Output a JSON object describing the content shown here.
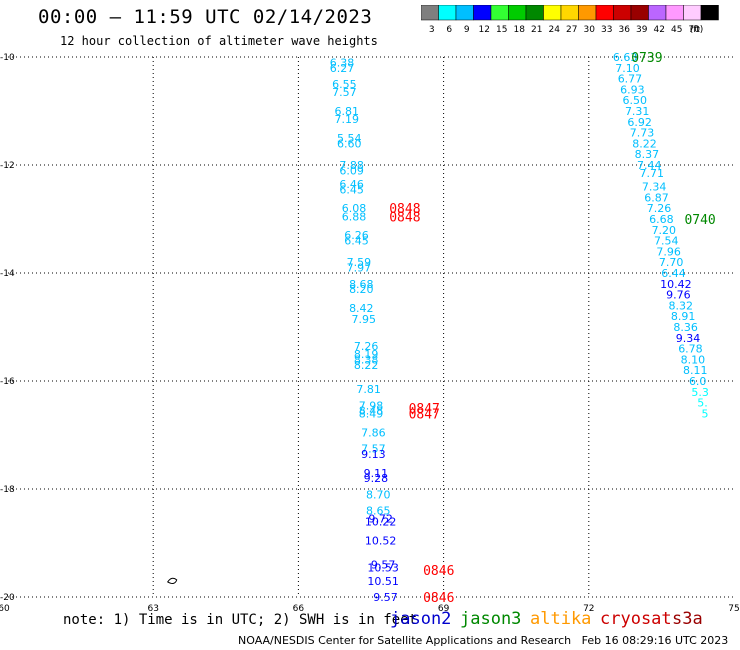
{
  "header": {
    "title": "00:00 – 11:59 UTC 02/14/2023",
    "subtitle": "12 hour collection of altimeter wave heights"
  },
  "legend": {
    "unit_label": "(ft)",
    "bins": [
      {
        "label": "3",
        "color": "#7f7f7f"
      },
      {
        "label": "6",
        "color": "#00ffff"
      },
      {
        "label": "9",
        "color": "#00bfff"
      },
      {
        "label": "12",
        "color": "#0000ff"
      },
      {
        "label": "15",
        "color": "#33ff33"
      },
      {
        "label": "18",
        "color": "#00cc00"
      },
      {
        "label": "21",
        "color": "#008800"
      },
      {
        "label": "24",
        "color": "#ffff00"
      },
      {
        "label": "27",
        "color": "#ffd700"
      },
      {
        "label": "30",
        "color": "#ff9900"
      },
      {
        "label": "33",
        "color": "#ff0000"
      },
      {
        "label": "36",
        "color": "#cc0000"
      },
      {
        "label": "39",
        "color": "#990000"
      },
      {
        "label": "42",
        "color": "#bb66ff"
      },
      {
        "label": "45",
        "color": "#ff99ff"
      },
      {
        "label": "70",
        "color": "#ffccff"
      },
      {
        "label": "",
        "color": "#000000"
      }
    ]
  },
  "footer": {
    "note": "note: 1) Time is in UTC; 2) SWH is in feet",
    "satellites": [
      {
        "name": "jason2",
        "color": "#0000cc"
      },
      {
        "name": "jason3",
        "color": "#008800"
      },
      {
        "name": "altika",
        "color": "#ff9900"
      },
      {
        "name": "cryosat",
        "color": "#cc0000"
      },
      {
        "name": "s3a",
        "color": "#990000"
      }
    ],
    "credit": "NOAA/NESDIS Center for Satellite Applications and Research",
    "timestamp": "Feb 16 08:29:16 UTC 2023"
  },
  "chart_data": {
    "type": "scatter",
    "title": "00:00 – 11:59 UTC 02/14/2023",
    "xlim": [
      60,
      75
    ],
    "ylim": [
      -20,
      -10
    ],
    "x_ticks": [
      "60",
      "63",
      "66",
      "69",
      "72",
      "75"
    ],
    "x_tick_values": [
      60,
      63,
      66,
      69,
      72,
      75
    ],
    "y_ticks": [
      "-10",
      "-12",
      "-14",
      "-16",
      "-18",
      "-20"
    ],
    "y_tick_values": [
      -10,
      -12,
      -14,
      -16,
      -18,
      -20
    ],
    "grid": true,
    "points": [
      {
        "x": 66.9,
        "y": -10.1,
        "label": "6.38",
        "color": "#00bfff"
      },
      {
        "x": 66.9,
        "y": -10.2,
        "label": "6.27",
        "color": "#00bfff"
      },
      {
        "x": 66.95,
        "y": -10.5,
        "label": "6.55",
        "color": "#00bfff"
      },
      {
        "x": 66.95,
        "y": -10.65,
        "label": "7.57",
        "color": "#00bfff"
      },
      {
        "x": 67.0,
        "y": -11.0,
        "label": "6.81",
        "color": "#00bfff"
      },
      {
        "x": 67.0,
        "y": -11.15,
        "label": "7.19",
        "color": "#00bfff"
      },
      {
        "x": 67.05,
        "y": -11.5,
        "label": "5.54",
        "color": "#00bfff"
      },
      {
        "x": 67.05,
        "y": -11.6,
        "label": "6.60",
        "color": "#00bfff"
      },
      {
        "x": 67.1,
        "y": -12.0,
        "label": "7.88",
        "color": "#00bfff"
      },
      {
        "x": 67.1,
        "y": -12.1,
        "label": "6.09",
        "color": "#00bfff"
      },
      {
        "x": 67.1,
        "y": -12.35,
        "label": "6.46",
        "color": "#00bfff"
      },
      {
        "x": 67.1,
        "y": -12.45,
        "label": "6.45",
        "color": "#00bfff"
      },
      {
        "x": 67.15,
        "y": -12.8,
        "label": "6.08",
        "color": "#00bfff"
      },
      {
        "x": 67.15,
        "y": -12.95,
        "label": "6.88",
        "color": "#00bfff"
      },
      {
        "x": 67.2,
        "y": -13.3,
        "label": "6.26",
        "color": "#00bfff"
      },
      {
        "x": 67.2,
        "y": -13.4,
        "label": "6.45",
        "color": "#00bfff"
      },
      {
        "x": 67.25,
        "y": -13.8,
        "label": "7.59",
        "color": "#00bfff"
      },
      {
        "x": 67.25,
        "y": -13.9,
        "label": "7.97",
        "color": "#00bfff"
      },
      {
        "x": 67.3,
        "y": -14.2,
        "label": "8.68",
        "color": "#00bfff"
      },
      {
        "x": 67.3,
        "y": -14.3,
        "label": "8.20",
        "color": "#00bfff"
      },
      {
        "x": 67.3,
        "y": -14.65,
        "label": "8.42",
        "color": "#00bfff"
      },
      {
        "x": 67.35,
        "y": -14.85,
        "label": "7.95",
        "color": "#00bfff"
      },
      {
        "x": 67.4,
        "y": -15.35,
        "label": "7.26",
        "color": "#00bfff"
      },
      {
        "x": 67.4,
        "y": -15.5,
        "label": "8.19",
        "color": "#00bfff"
      },
      {
        "x": 67.4,
        "y": -15.6,
        "label": "8.38",
        "color": "#00bfff"
      },
      {
        "x": 67.4,
        "y": -15.7,
        "label": "8.22",
        "color": "#00bfff"
      },
      {
        "x": 67.45,
        "y": -16.15,
        "label": "7.81",
        "color": "#00bfff"
      },
      {
        "x": 67.5,
        "y": -16.45,
        "label": "7.98",
        "color": "#00bfff"
      },
      {
        "x": 67.5,
        "y": -16.55,
        "label": "8.48",
        "color": "#00bfff"
      },
      {
        "x": 67.5,
        "y": -16.6,
        "label": "8.49",
        "color": "#00bfff"
      },
      {
        "x": 67.55,
        "y": -16.95,
        "label": "7.86",
        "color": "#00bfff"
      },
      {
        "x": 67.55,
        "y": -17.25,
        "label": "7.57",
        "color": "#00bfff"
      },
      {
        "x": 67.55,
        "y": -17.35,
        "label": "9.13",
        "color": "#0000ff"
      },
      {
        "x": 67.6,
        "y": -17.7,
        "label": "9.11",
        "color": "#0000ff"
      },
      {
        "x": 67.6,
        "y": -17.8,
        "label": "9.28",
        "color": "#0000ff"
      },
      {
        "x": 67.65,
        "y": -18.1,
        "label": "8.70",
        "color": "#00bfff"
      },
      {
        "x": 67.65,
        "y": -18.4,
        "label": "8.65",
        "color": "#00bfff"
      },
      {
        "x": 67.7,
        "y": -18.55,
        "label": "9.72",
        "color": "#0000ff"
      },
      {
        "x": 67.7,
        "y": -18.6,
        "label": "10.22",
        "color": "#0000ff"
      },
      {
        "x": 67.7,
        "y": -18.95,
        "label": "10.52",
        "color": "#0000ff"
      },
      {
        "x": 67.75,
        "y": -19.4,
        "label": "9.57",
        "color": "#0000ff"
      },
      {
        "x": 67.75,
        "y": -19.45,
        "label": "10.53",
        "color": "#0000ff"
      },
      {
        "x": 67.75,
        "y": -19.7,
        "label": "10.51",
        "color": "#0000ff"
      },
      {
        "x": 67.8,
        "y": -20.0,
        "label": "9.57",
        "color": "#0000ff"
      },
      {
        "x": 72.75,
        "y": -10.0,
        "label": "6.63",
        "color": "#00bfff"
      },
      {
        "x": 72.8,
        "y": -10.2,
        "label": "7.10",
        "color": "#00bfff"
      },
      {
        "x": 72.85,
        "y": -10.4,
        "label": "6.77",
        "color": "#00bfff"
      },
      {
        "x": 72.9,
        "y": -10.6,
        "label": "6.93",
        "color": "#00bfff"
      },
      {
        "x": 72.95,
        "y": -10.8,
        "label": "6.50",
        "color": "#00bfff"
      },
      {
        "x": 73.0,
        "y": -11.0,
        "label": "7.31",
        "color": "#00bfff"
      },
      {
        "x": 73.05,
        "y": -11.2,
        "label": "6.92",
        "color": "#00bfff"
      },
      {
        "x": 73.1,
        "y": -11.4,
        "label": "7.73",
        "color": "#00bfff"
      },
      {
        "x": 73.15,
        "y": -11.6,
        "label": "8.22",
        "color": "#00bfff"
      },
      {
        "x": 73.2,
        "y": -11.8,
        "label": "8.37",
        "color": "#00bfff"
      },
      {
        "x": 73.25,
        "y": -12.0,
        "label": "7.44",
        "color": "#00bfff"
      },
      {
        "x": 73.3,
        "y": -12.15,
        "label": "7.71",
        "color": "#00bfff"
      },
      {
        "x": 73.35,
        "y": -12.4,
        "label": "7.34",
        "color": "#00bfff"
      },
      {
        "x": 73.4,
        "y": -12.6,
        "label": "6.87",
        "color": "#00bfff"
      },
      {
        "x": 73.45,
        "y": -12.8,
        "label": "7.26",
        "color": "#00bfff"
      },
      {
        "x": 73.5,
        "y": -13.0,
        "label": "6.68",
        "color": "#00bfff"
      },
      {
        "x": 73.55,
        "y": -13.2,
        "label": "7.20",
        "color": "#00bfff"
      },
      {
        "x": 73.6,
        "y": -13.4,
        "label": "7.54",
        "color": "#00bfff"
      },
      {
        "x": 73.65,
        "y": -13.6,
        "label": "7.96",
        "color": "#00bfff"
      },
      {
        "x": 73.7,
        "y": -13.8,
        "label": "7.70",
        "color": "#00bfff"
      },
      {
        "x": 73.75,
        "y": -14.0,
        "label": "6.44",
        "color": "#00bfff"
      },
      {
        "x": 73.8,
        "y": -14.2,
        "label": "10.42",
        "color": "#0000ff"
      },
      {
        "x": 73.85,
        "y": -14.4,
        "label": "9.76",
        "color": "#0000ff"
      },
      {
        "x": 73.9,
        "y": -14.6,
        "label": "8.32",
        "color": "#00bfff"
      },
      {
        "x": 73.95,
        "y": -14.8,
        "label": "8.91",
        "color": "#00bfff"
      },
      {
        "x": 74.0,
        "y": -15.0,
        "label": "8.36",
        "color": "#00bfff"
      },
      {
        "x": 74.05,
        "y": -15.2,
        "label": "9.34",
        "color": "#0000ff"
      },
      {
        "x": 74.1,
        "y": -15.4,
        "label": "6.78",
        "color": "#00bfff"
      },
      {
        "x": 74.15,
        "y": -15.6,
        "label": "8.10",
        "color": "#00bfff"
      },
      {
        "x": 74.2,
        "y": -15.8,
        "label": "8.11",
        "color": "#00bfff"
      },
      {
        "x": 74.25,
        "y": -16.0,
        "label": "6.0",
        "color": "#00bfff"
      },
      {
        "x": 74.3,
        "y": -16.2,
        "label": "5.3",
        "color": "#00ffff"
      },
      {
        "x": 74.35,
        "y": -16.4,
        "label": "5.",
        "color": "#00ffff"
      },
      {
        "x": 74.4,
        "y": -16.6,
        "label": "5",
        "color": "#00ffff"
      }
    ],
    "time_labels": [
      {
        "x": 73.2,
        "y": -10.0,
        "label": "0739",
        "color": "#008800"
      },
      {
        "x": 74.3,
        "y": -13.0,
        "label": "0740",
        "color": "#008800"
      },
      {
        "x": 68.2,
        "y": -12.8,
        "label": "0848",
        "color": "#ff0000"
      },
      {
        "x": 68.2,
        "y": -12.95,
        "label": "0848",
        "color": "#ff0000"
      },
      {
        "x": 68.6,
        "y": -16.5,
        "label": "0847",
        "color": "#ff0000"
      },
      {
        "x": 68.6,
        "y": -16.6,
        "label": "0847",
        "color": "#ff0000"
      },
      {
        "x": 68.9,
        "y": -19.5,
        "label": "0846",
        "color": "#ff0000"
      },
      {
        "x": 68.9,
        "y": -20.0,
        "label": "0846",
        "color": "#ff0000"
      }
    ]
  }
}
